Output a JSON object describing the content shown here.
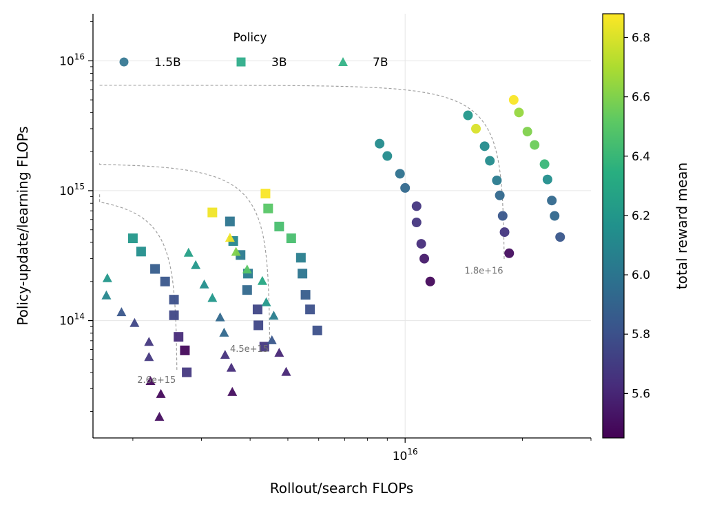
{
  "chart_data": {
    "type": "scatter",
    "xlabel": "Rollout/search FLOPs",
    "ylabel": "Policy-update/learning FLOPs",
    "x_scale": "log",
    "y_scale": "log",
    "xlim": [
      1580000000000000.0,
      3e+16
    ],
    "ylim": [
      12500000000000.0,
      2.3e+16
    ],
    "x_major_ticks": [
      {
        "value": 1e+16,
        "label": "10^16"
      }
    ],
    "y_major_ticks": [
      {
        "value": 100000000000000.0,
        "label": "10^14"
      },
      {
        "value": 1000000000000000.0,
        "label": "10^15"
      },
      {
        "value": 1e+16,
        "label": "10^16"
      }
    ],
    "grid": true,
    "colorbar": {
      "label": "total reward mean",
      "min": 5.45,
      "max": 6.88,
      "ticks": [
        "5.6",
        "5.8",
        "6.0",
        "6.2",
        "6.4",
        "6.6",
        "6.8"
      ]
    },
    "legend": {
      "title": "Policy",
      "placement": "top-left",
      "entries": [
        {
          "label": "1.5B",
          "marker": "circle"
        },
        {
          "label": "3B",
          "marker": "square"
        },
        {
          "label": "7B",
          "marker": "triangle"
        }
      ]
    },
    "iso_curves": [
      {
        "label": "2.6e+15",
        "budget": 2600000000000000.0
      },
      {
        "label": "4.5e+15",
        "budget": 4500000000000000.0
      },
      {
        "label": "1.8e+16",
        "budget": 1.8e+16
      }
    ],
    "series": [
      {
        "name": "1.5B",
        "marker": "circle",
        "points": [
          {
            "x": 8600000000000000.0,
            "y": 2300000000000000.0,
            "reward": 6.13
          },
          {
            "x": 9000000000000000.0,
            "y": 1850000000000000.0,
            "reward": 6.13
          },
          {
            "x": 9700000000000000.0,
            "y": 1350000000000000.0,
            "reward": 5.98
          },
          {
            "x": 1e+16,
            "y": 1050000000000000.0,
            "reward": 5.93
          },
          {
            "x": 1.07e+16,
            "y": 760000000000000.0,
            "reward": 5.67
          },
          {
            "x": 1.07e+16,
            "y": 570000000000000.0,
            "reward": 5.67
          },
          {
            "x": 1.1e+16,
            "y": 390000000000000.0,
            "reward": 5.63
          },
          {
            "x": 1.12e+16,
            "y": 300000000000000.0,
            "reward": 5.55
          },
          {
            "x": 1.16e+16,
            "y": 200000000000000.0,
            "reward": 5.48
          },
          {
            "x": 1.45e+16,
            "y": 3800000000000000.0,
            "reward": 6.2
          },
          {
            "x": 1.52e+16,
            "y": 3000000000000000.0,
            "reward": 6.8
          },
          {
            "x": 1.6e+16,
            "y": 2200000000000000.0,
            "reward": 6.13
          },
          {
            "x": 1.65e+16,
            "y": 1700000000000000.0,
            "reward": 6.13
          },
          {
            "x": 1.72e+16,
            "y": 1200000000000000.0,
            "reward": 6.03
          },
          {
            "x": 1.75e+16,
            "y": 920000000000000.0,
            "reward": 5.93
          },
          {
            "x": 1.78e+16,
            "y": 640000000000000.0,
            "reward": 5.83
          },
          {
            "x": 1.8e+16,
            "y": 480000000000000.0,
            "reward": 5.67
          },
          {
            "x": 1.85e+16,
            "y": 330000000000000.0,
            "reward": 5.5
          },
          {
            "x": 1.9e+16,
            "y": 5000000000000000.0,
            "reward": 6.87
          },
          {
            "x": 1.96e+16,
            "y": 4000000000000000.0,
            "reward": 6.65
          },
          {
            "x": 2.06e+16,
            "y": 2850000000000000.0,
            "reward": 6.6
          },
          {
            "x": 2.15e+16,
            "y": 2250000000000000.0,
            "reward": 6.55
          },
          {
            "x": 2.28e+16,
            "y": 1600000000000000.0,
            "reward": 6.4
          },
          {
            "x": 2.32e+16,
            "y": 1220000000000000.0,
            "reward": 6.15
          },
          {
            "x": 2.38e+16,
            "y": 840000000000000.0,
            "reward": 5.93
          },
          {
            "x": 2.42e+16,
            "y": 640000000000000.0,
            "reward": 5.93
          },
          {
            "x": 2.5e+16,
            "y": 440000000000000.0,
            "reward": 5.83
          }
        ]
      },
      {
        "name": "3B",
        "marker": "square",
        "points": [
          {
            "x": 2000000000000000.0,
            "y": 430000000000000.0,
            "reward": 6.2
          },
          {
            "x": 2100000000000000.0,
            "y": 340000000000000.0,
            "reward": 6.15
          },
          {
            "x": 2280000000000000.0,
            "y": 250000000000000.0,
            "reward": 5.87
          },
          {
            "x": 2420000000000000.0,
            "y": 200000000000000.0,
            "reward": 5.83
          },
          {
            "x": 2550000000000000.0,
            "y": 145000000000000.0,
            "reward": 5.8
          },
          {
            "x": 2550000000000000.0,
            "y": 110000000000000.0,
            "reward": 5.75
          },
          {
            "x": 2620000000000000.0,
            "y": 75000000000000.0,
            "reward": 5.62
          },
          {
            "x": 2720000000000000.0,
            "y": 59000000000000.0,
            "reward": 5.48
          },
          {
            "x": 2750000000000000.0,
            "y": 40000000000000.0,
            "reward": 5.68
          },
          {
            "x": 3200000000000000.0,
            "y": 680000000000000.0,
            "reward": 6.85
          },
          {
            "x": 3550000000000000.0,
            "y": 580000000000000.0,
            "reward": 6.0
          },
          {
            "x": 3620000000000000.0,
            "y": 410000000000000.0,
            "reward": 6.1
          },
          {
            "x": 3780000000000000.0,
            "y": 320000000000000.0,
            "reward": 6.03
          },
          {
            "x": 3950000000000000.0,
            "y": 230000000000000.0,
            "reward": 6.03
          },
          {
            "x": 3930000000000000.0,
            "y": 172000000000000.0,
            "reward": 5.93
          },
          {
            "x": 4180000000000000.0,
            "y": 122000000000000.0,
            "reward": 5.75
          },
          {
            "x": 4200000000000000.0,
            "y": 92000000000000.0,
            "reward": 5.75
          },
          {
            "x": 4350000000000000.0,
            "y": 63000000000000.0,
            "reward": 5.68
          },
          {
            "x": 4380000000000000.0,
            "y": 950000000000000.0,
            "reward": 6.87
          },
          {
            "x": 4450000000000000.0,
            "y": 730000000000000.0,
            "reward": 6.5
          },
          {
            "x": 4750000000000000.0,
            "y": 530000000000000.0,
            "reward": 6.45
          },
          {
            "x": 5100000000000000.0,
            "y": 430000000000000.0,
            "reward": 6.45
          },
          {
            "x": 5400000000000000.0,
            "y": 305000000000000.0,
            "reward": 6.05
          },
          {
            "x": 5450000000000000.0,
            "y": 230000000000000.0,
            "reward": 6.0
          },
          {
            "x": 5550000000000000.0,
            "y": 158000000000000.0,
            "reward": 5.87
          },
          {
            "x": 5700000000000000.0,
            "y": 122000000000000.0,
            "reward": 5.8
          },
          {
            "x": 5950000000000000.0,
            "y": 84000000000000.0,
            "reward": 5.8
          }
        ]
      },
      {
        "name": "7B",
        "marker": "triangle",
        "points": [
          {
            "x": 1720000000000000.0,
            "y": 210000000000000.0,
            "reward": 6.2
          },
          {
            "x": 1710000000000000.0,
            "y": 155000000000000.0,
            "reward": 6.1
          },
          {
            "x": 1870000000000000.0,
            "y": 115000000000000.0,
            "reward": 5.83
          },
          {
            "x": 2020000000000000.0,
            "y": 95000000000000.0,
            "reward": 5.75
          },
          {
            "x": 2200000000000000.0,
            "y": 68000000000000.0,
            "reward": 5.68
          },
          {
            "x": 2200000000000000.0,
            "y": 52000000000000.0,
            "reward": 5.68
          },
          {
            "x": 2220000000000000.0,
            "y": 34000000000000.0,
            "reward": 5.48
          },
          {
            "x": 2360000000000000.0,
            "y": 27000000000000.0,
            "reward": 5.48
          },
          {
            "x": 2340000000000000.0,
            "y": 18000000000000.0,
            "reward": 5.5
          },
          {
            "x": 2780000000000000.0,
            "y": 330000000000000.0,
            "reward": 6.25
          },
          {
            "x": 2900000000000000.0,
            "y": 265000000000000.0,
            "reward": 6.2
          },
          {
            "x": 3050000000000000.0,
            "y": 188000000000000.0,
            "reward": 6.15
          },
          {
            "x": 3200000000000000.0,
            "y": 148000000000000.0,
            "reward": 6.2
          },
          {
            "x": 3350000000000000.0,
            "y": 105000000000000.0,
            "reward": 5.93
          },
          {
            "x": 3430000000000000.0,
            "y": 80000000000000.0,
            "reward": 5.93
          },
          {
            "x": 3450000000000000.0,
            "y": 54000000000000.0,
            "reward": 5.65
          },
          {
            "x": 3580000000000000.0,
            "y": 43000000000000.0,
            "reward": 5.63
          },
          {
            "x": 3600000000000000.0,
            "y": 28000000000000.0,
            "reward": 5.5
          },
          {
            "x": 3550000000000000.0,
            "y": 430000000000000.0,
            "reward": 6.85
          },
          {
            "x": 3680000000000000.0,
            "y": 335000000000000.0,
            "reward": 6.6
          },
          {
            "x": 3930000000000000.0,
            "y": 245000000000000.0,
            "reward": 6.5
          },
          {
            "x": 4300000000000000.0,
            "y": 200000000000000.0,
            "reward": 6.3
          },
          {
            "x": 4400000000000000.0,
            "y": 137000000000000.0,
            "reward": 6.2
          },
          {
            "x": 4600000000000000.0,
            "y": 108000000000000.0,
            "reward": 6.05
          },
          {
            "x": 4550000000000000.0,
            "y": 70000000000000.0,
            "reward": 5.83
          },
          {
            "x": 4750000000000000.0,
            "y": 56000000000000.0,
            "reward": 5.6
          },
          {
            "x": 4950000000000000.0,
            "y": 40000000000000.0,
            "reward": 5.6
          }
        ]
      }
    ]
  }
}
